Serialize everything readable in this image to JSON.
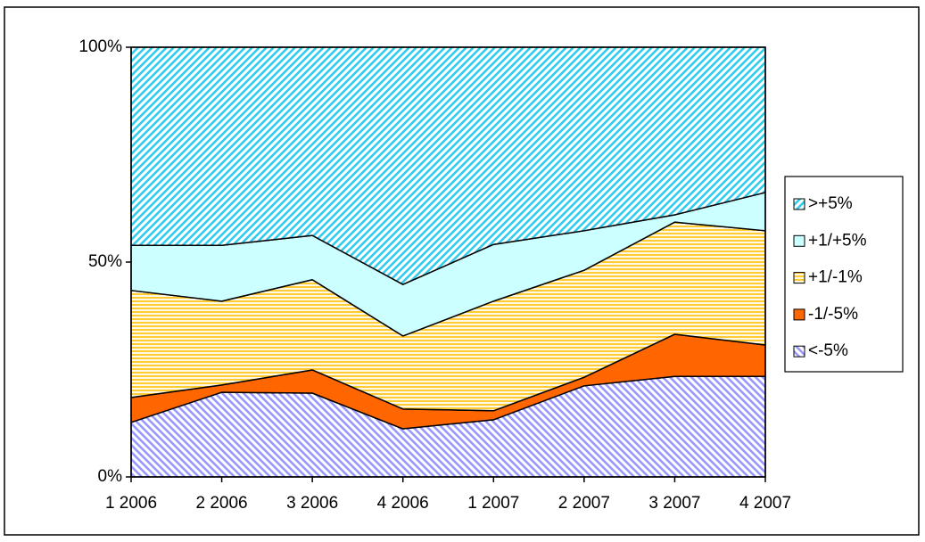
{
  "chart_data": {
    "type": "stacked-area-100",
    "categories": [
      "1 2006",
      "2 2006",
      "3 2006",
      "4 2006",
      "1 2007",
      "2 2007",
      "3 2007",
      "4 2007"
    ],
    "series": [
      {
        "name": "<-5%",
        "color": "#9999ff",
        "pattern": "diagonal-down",
        "values": [
          12.7,
          19.7,
          19.5,
          11.2,
          13.3,
          21.2,
          23.4,
          23.4
        ]
      },
      {
        "name": "-1/-5%",
        "color": "#ff6600",
        "pattern": "solid",
        "values": [
          5.8,
          1.7,
          5.4,
          4.6,
          2.1,
          2.0,
          9.8,
          7.3
        ]
      },
      {
        "name": "+1/-1%",
        "color": "#ffcc33",
        "pattern": "horizontal",
        "values": [
          24.9,
          19.5,
          21.0,
          17.0,
          25.5,
          24.9,
          26.1,
          26.6
        ]
      },
      {
        "name": "+1/+5%",
        "color": "#ccffff",
        "pattern": "solid",
        "values": [
          10.5,
          13.0,
          10.3,
          12.0,
          13.2,
          9.2,
          1.7,
          8.9
        ]
      },
      {
        "name": ">+5%",
        "color": "#33ccee",
        "pattern": "diagonal-up",
        "values": [
          46.1,
          46.1,
          43.8,
          55.2,
          45.9,
          42.7,
          39.0,
          33.8
        ]
      }
    ],
    "ylim": [
      0,
      100
    ],
    "yticks": [
      {
        "value": 0,
        "label": "0%"
      },
      {
        "value": 50,
        "label": "50%"
      },
      {
        "value": 100,
        "label": "100%"
      }
    ],
    "grid": false,
    "legend": "right"
  }
}
